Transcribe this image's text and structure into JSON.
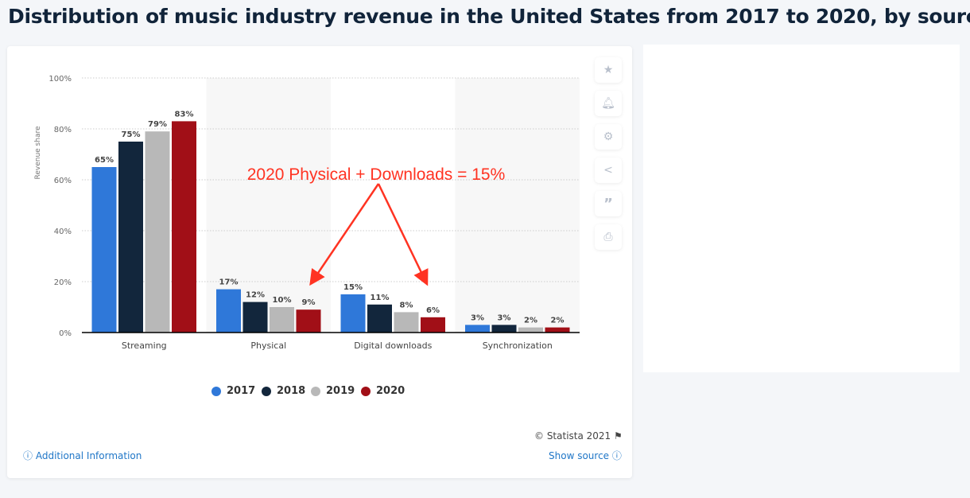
{
  "title": "Distribution of music industry revenue in the United States from 2017 to 2020, by source",
  "chart_data": {
    "type": "bar",
    "categories": [
      "Streaming",
      "Physical",
      "Digital downloads",
      "Synchronization"
    ],
    "series": [
      {
        "name": "2017",
        "color": "#2f78d9",
        "values": [
          65,
          17,
          15,
          3
        ]
      },
      {
        "name": "2018",
        "color": "#12263c",
        "values": [
          75,
          12,
          11,
          3
        ]
      },
      {
        "name": "2019",
        "color": "#b8b8b8",
        "values": [
          79,
          10,
          8,
          2
        ]
      },
      {
        "name": "2020",
        "color": "#a10f17",
        "values": [
          83,
          9,
          6,
          2
        ]
      }
    ],
    "ylabel": "Revenue share",
    "ylim": [
      0,
      100
    ],
    "yticks": [
      "0%",
      "20%",
      "40%",
      "60%",
      "80%",
      "100%"
    ],
    "grid": true,
    "legend": "bottom",
    "annotation": {
      "text": "2020 Physical + Downloads = 15%",
      "color": "#ff3322"
    }
  },
  "footer": {
    "copyright": "© Statista 2021",
    "additional_info": "Additional Information",
    "show_source": "Show source"
  },
  "toolbar": [
    "star-icon",
    "bell-icon",
    "gear-icon",
    "share-icon",
    "quote-icon",
    "print-icon"
  ]
}
